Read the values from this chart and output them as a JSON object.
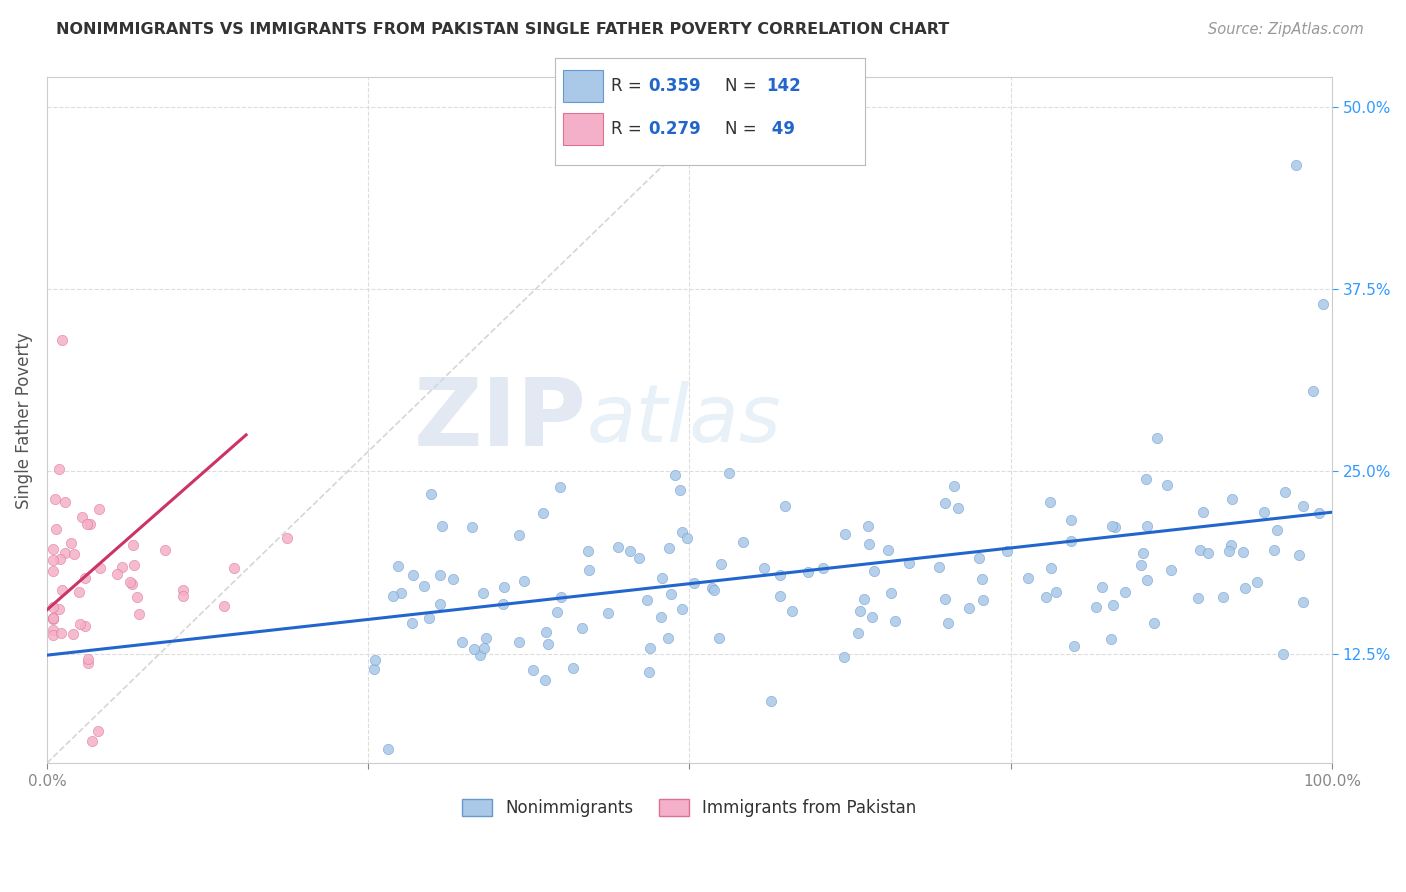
{
  "title": "NONIMMIGRANTS VS IMMIGRANTS FROM PAKISTAN SINGLE FATHER POVERTY CORRELATION CHART",
  "source": "Source: ZipAtlas.com",
  "ylabel": "Single Father Poverty",
  "xlim": [
    0,
    1
  ],
  "ylim": [
    0.05,
    0.52
  ],
  "yticks": [
    0.125,
    0.25,
    0.375,
    0.5
  ],
  "yticklabels": [
    "12.5%",
    "25.0%",
    "37.5%",
    "50.0%"
  ],
  "watermark_zip": "ZIP",
  "watermark_atlas": "atlas",
  "background_color": "#ffffff",
  "nonimmigrant_scatter_color": "#aac8e8",
  "nonimmigrant_edge_color": "#6699cc",
  "immigrant_scatter_color": "#f4b0c8",
  "immigrant_edge_color": "#e07090",
  "blue_line_color": "#2266cc",
  "pink_line_color": "#cc3366",
  "diagonal_color": "#cccccc",
  "grid_color": "#e8e8e8",
  "legend_box_color": "#f8f8f8",
  "legend_border_color": "#cccccc",
  "yaxis_label_color": "#3399ff",
  "title_color": "#333333",
  "source_color": "#999999",
  "nonimmigrant_label": "Nonimmigrants",
  "immigrant_label": "Immigrants from Pakistan",
  "ni_R": "0.359",
  "ni_N": "142",
  "im_R": "0.279",
  "im_N": " 49",
  "ni_line_x0": 0.0,
  "ni_line_y0": 0.124,
  "ni_line_x1": 1.0,
  "ni_line_y1": 0.222,
  "im_line_x0": 0.0,
  "im_line_y0": 0.155,
  "im_line_x1": 0.155,
  "im_line_y1": 0.275
}
